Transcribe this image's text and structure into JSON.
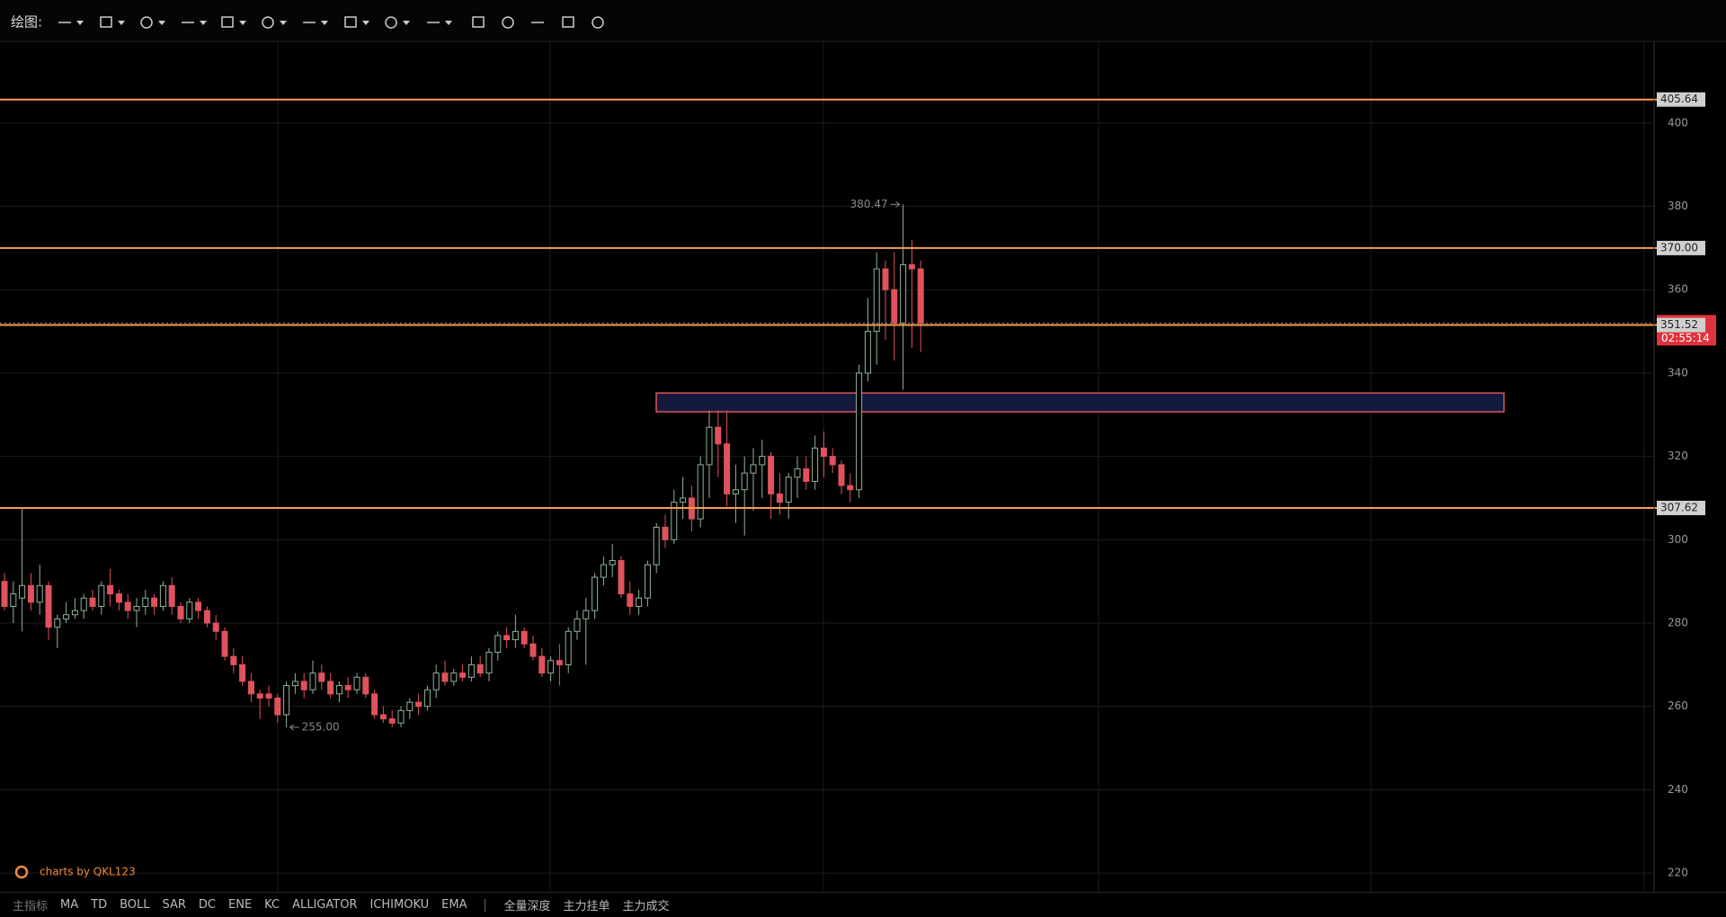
{
  "toolbar": {
    "label": "绘图:"
  },
  "chart_data": {
    "type": "candlestick",
    "open": [
      290,
      284,
      286,
      289,
      285,
      289,
      279,
      281,
      282,
      283,
      286,
      284,
      289,
      287,
      285,
      283,
      284,
      286,
      284,
      289,
      284,
      281,
      285,
      283,
      280,
      278,
      272,
      270,
      266,
      263,
      263,
      262,
      258,
      265,
      266,
      264,
      268,
      266,
      263,
      265,
      264,
      267,
      263,
      258,
      257,
      256,
      259,
      261,
      260,
      264,
      268,
      266,
      268,
      267,
      270,
      268,
      273,
      277,
      276,
      278,
      275,
      272,
      268,
      271,
      270,
      278,
      281,
      283,
      291,
      294,
      295,
      287,
      284,
      286,
      294,
      303,
      300,
      309,
      310,
      305,
      318,
      327,
      323,
      311,
      312,
      316,
      318,
      320,
      311,
      309,
      315,
      317,
      314,
      322,
      320,
      318,
      313,
      312,
      340,
      350,
      365,
      360,
      352,
      366,
      365
    ],
    "high": [
      292,
      290,
      307.6,
      292,
      294,
      290,
      282,
      285,
      286,
      287,
      288,
      290,
      293,
      288,
      287,
      286,
      288,
      287,
      290,
      291,
      285,
      286,
      286,
      284,
      282,
      279,
      274,
      272,
      268,
      264,
      265,
      263,
      266,
      268,
      268,
      271,
      270,
      268,
      266,
      267,
      268,
      268,
      264,
      260,
      259,
      260,
      262,
      263,
      265,
      270,
      271,
      269,
      270,
      272,
      272,
      274,
      278,
      279,
      282,
      279,
      277,
      274,
      272,
      275,
      279,
      283,
      286,
      292,
      296,
      299,
      296,
      290,
      288,
      295,
      304,
      306,
      312,
      315,
      313,
      320,
      331,
      331,
      331,
      318,
      320,
      322,
      324,
      321,
      316,
      316,
      320,
      320,
      325,
      326,
      322,
      319,
      316,
      342,
      358,
      369,
      367,
      369,
      380.47,
      372,
      367
    ],
    "low": [
      283,
      280,
      278,
      283,
      282,
      276,
      274,
      280,
      281,
      281,
      283,
      282,
      284,
      283,
      281,
      279,
      282,
      282,
      283,
      282,
      280,
      280,
      281,
      279,
      276,
      271,
      268,
      265,
      261,
      257,
      260,
      256,
      255,
      263,
      262,
      263,
      264,
      262,
      261,
      262,
      263,
      262,
      257,
      256,
      255,
      255,
      257,
      258,
      259,
      262,
      265,
      265,
      266,
      266,
      267,
      266,
      271,
      274,
      274,
      274,
      271,
      267,
      266,
      265,
      268,
      276,
      270,
      281,
      289,
      291,
      286,
      282,
      282,
      284,
      292,
      298,
      299,
      305,
      302,
      303,
      310,
      315,
      308,
      304,
      301,
      307,
      310,
      305,
      306,
      305,
      310,
      312,
      312,
      315,
      316,
      311,
      309,
      310,
      338,
      342,
      348,
      343,
      336,
      346,
      345
    ],
    "close": [
      284,
      287,
      289,
      285,
      289,
      279,
      281,
      282,
      283,
      286,
      284,
      289,
      287,
      285,
      283,
      284,
      286,
      284,
      289,
      284,
      281,
      285,
      283,
      280,
      278,
      272,
      270,
      266,
      263,
      262,
      262,
      258,
      265,
      266,
      264,
      268,
      266,
      263,
      265,
      264,
      267,
      263,
      258,
      257,
      256,
      259,
      261,
      260,
      264,
      268,
      266,
      268,
      267,
      270,
      268,
      273,
      277,
      276,
      278,
      275,
      272,
      268,
      271,
      270,
      278,
      281,
      283,
      291,
      294,
      295,
      287,
      284,
      286,
      294,
      303,
      300,
      309,
      310,
      305,
      318,
      327,
      323,
      311,
      312,
      316,
      318,
      320,
      311,
      309,
      315,
      317,
      314,
      322,
      320,
      318,
      313,
      312,
      340,
      350,
      365,
      360,
      352,
      366,
      365,
      352
    ],
    "up_color": "#8fb39a",
    "down_color": "#e0525c",
    "ylim": [
      215.5,
      419.6
    ],
    "yticks": [
      220,
      240,
      260,
      280,
      300,
      320,
      340,
      360,
      380,
      400
    ],
    "grid": true,
    "price_lines": [
      405.64,
      {
        "value": 370,
        "label": "370.00"
      },
      351.52,
      307.62
    ],
    "price_line_color": "#f5a050",
    "zone": [
      330.7,
      335.2
    ],
    "zone_color": "#e0525c",
    "annotations": [
      380.47,
      {
        "value": 255,
        "label": "255.00"
      }
    ],
    "countdown": "02:55:14"
  },
  "watermark": "charts by QKL123",
  "indicator_bar": {
    "items": [
      "主指标",
      "MA",
      "TD",
      "BOLL",
      "SAR",
      "DC",
      "ENE",
      "KC",
      "ALLIGATOR",
      "ICHIMOKU",
      "EMA"
    ],
    "extra": [
      "全量深度",
      "主力挂单",
      "主力成交"
    ]
  }
}
